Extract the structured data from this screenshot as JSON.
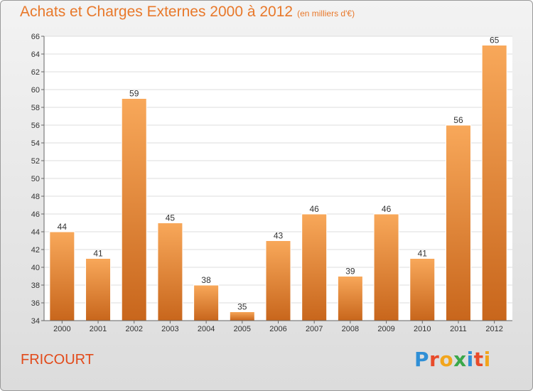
{
  "title": "Achats et Charges Externes 2000 à 2012",
  "subtitle": "(en milliers d'€)",
  "commune": "FRICOURT",
  "logo_text": "Proxiti",
  "colors": {
    "title": "#e8782a",
    "commune": "#e24a1a",
    "bar_light": "#f8a85a",
    "bar_dark": "#c8661c"
  },
  "chart_data": {
    "type": "bar",
    "title": "Achats et Charges Externes 2000 à 2012",
    "subtitle": "(en milliers d'€)",
    "categories": [
      "2000",
      "2001",
      "2002",
      "2003",
      "2004",
      "2005",
      "2006",
      "2007",
      "2008",
      "2009",
      "2010",
      "2011",
      "2012"
    ],
    "values": [
      44,
      41,
      59,
      45,
      38,
      35,
      43,
      46,
      39,
      46,
      41,
      56,
      65
    ],
    "ylim": [
      34,
      66
    ],
    "yticks": [
      34,
      36,
      38,
      40,
      42,
      44,
      46,
      48,
      50,
      52,
      54,
      56,
      58,
      60,
      62,
      64,
      66
    ],
    "grid": true
  }
}
